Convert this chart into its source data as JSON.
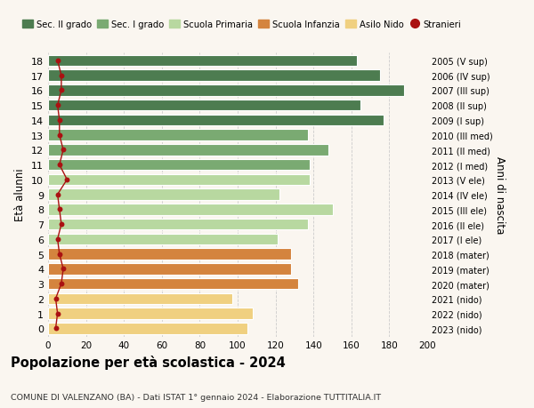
{
  "ages": [
    18,
    17,
    16,
    15,
    14,
    13,
    12,
    11,
    10,
    9,
    8,
    7,
    6,
    5,
    4,
    3,
    2,
    1,
    0
  ],
  "right_labels": [
    "2005 (V sup)",
    "2006 (IV sup)",
    "2007 (III sup)",
    "2008 (II sup)",
    "2009 (I sup)",
    "2010 (III med)",
    "2011 (II med)",
    "2012 (I med)",
    "2013 (V ele)",
    "2014 (IV ele)",
    "2015 (III ele)",
    "2016 (II ele)",
    "2017 (I ele)",
    "2018 (mater)",
    "2019 (mater)",
    "2020 (mater)",
    "2021 (nido)",
    "2022 (nido)",
    "2023 (nido)"
  ],
  "bar_values": [
    163,
    175,
    188,
    165,
    177,
    137,
    148,
    138,
    138,
    122,
    150,
    137,
    121,
    128,
    128,
    132,
    97,
    108,
    105
  ],
  "stranieri_values": [
    5,
    7,
    7,
    5,
    6,
    6,
    8,
    6,
    10,
    5,
    6,
    7,
    5,
    6,
    8,
    7,
    4,
    5,
    4
  ],
  "bar_colors": [
    "#4d7c50",
    "#4d7c50",
    "#4d7c50",
    "#4d7c50",
    "#4d7c50",
    "#7aaa72",
    "#7aaa72",
    "#7aaa72",
    "#b8d8a0",
    "#b8d8a0",
    "#b8d8a0",
    "#b8d8a0",
    "#b8d8a0",
    "#d4843e",
    "#d4843e",
    "#d4843e",
    "#f0d080",
    "#f0d080",
    "#f0d080"
  ],
  "legend_labels": [
    "Sec. II grado",
    "Sec. I grado",
    "Scuola Primaria",
    "Scuola Infanzia",
    "Asilo Nido",
    "Stranieri"
  ],
  "legend_colors": [
    "#4d7c50",
    "#7aaa72",
    "#b8d8a0",
    "#d4843e",
    "#f0d080",
    "#aa1111"
  ],
  "title": "Popolazione per età scolastica - 2024",
  "subtitle": "COMUNE DI VALENZANO (BA) - Dati ISTAT 1° gennaio 2024 - Elaborazione TUTTITALIA.IT",
  "ylabel": "Età alunni",
  "right_ylabel": "Anni di nascita",
  "xlabel_max": 200,
  "stranieri_color": "#aa1111",
  "grid_color": "#cccccc",
  "bg_color": "#faf6f0",
  "bar_height": 0.75
}
